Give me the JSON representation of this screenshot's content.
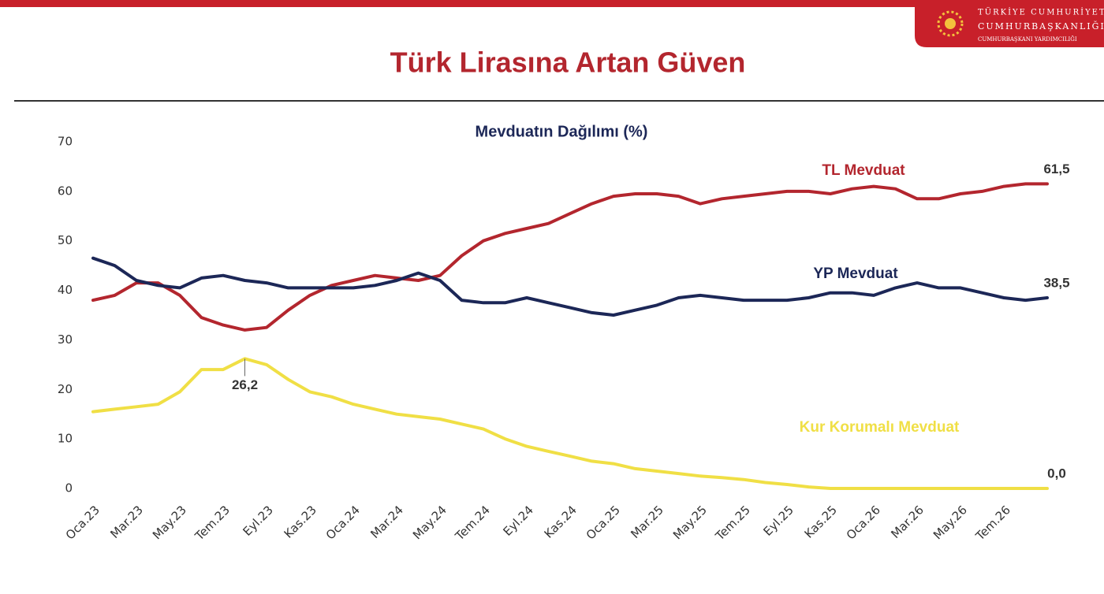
{
  "header": {
    "org_lines": [
      "TÜRKİYE CUMHURİYETİ",
      "CUMHURBAŞKANLIĞI",
      "CUMHURBAŞKANI YARDIMCILIĞI"
    ],
    "title": "Türk Lirasına Artan Güven"
  },
  "chart_data": {
    "type": "line",
    "title": "Mevduatın Dağılımı (%)",
    "categories": [
      "Oca.23",
      null,
      "Mar.23",
      null,
      "May.23",
      null,
      "Tem.23",
      null,
      "Eyl.23",
      null,
      "Kas.23",
      null,
      "Oca.24",
      null,
      "Mar.24",
      null,
      "May.24",
      null,
      "Tem.24",
      null,
      "Eyl.24",
      null,
      "Kas.24",
      null,
      "Oca.25",
      null,
      "Mar.25",
      null,
      "May.25",
      null,
      "Tem.25",
      null,
      "Eyl.25",
      null,
      "Kas.25",
      null,
      "Oca.26",
      null,
      "Mar.26",
      null,
      "May.26",
      null,
      "Tem.26",
      null,
      null
    ],
    "series": [
      {
        "name": "TL Mevduat",
        "color": "#b3262e",
        "values": [
          38,
          39,
          41.5,
          41.5,
          39,
          34.5,
          33,
          32,
          32.5,
          36,
          39,
          41,
          42,
          43,
          42.5,
          42,
          43,
          47,
          50,
          51.5,
          52.5,
          53.5,
          55.5,
          57.5,
          59,
          59.5,
          59.5,
          59,
          57.5,
          58.5,
          59,
          59.5,
          60,
          60,
          59.5,
          60.5,
          61,
          60.5,
          58.5,
          58.5,
          59.5,
          60,
          61,
          61.5,
          61.5
        ],
        "value_labels": [
          null,
          null,
          null,
          null,
          null,
          null,
          null,
          null,
          null,
          null,
          null,
          null,
          null,
          null,
          null,
          null,
          null,
          null,
          null,
          null,
          null,
          null,
          null,
          null,
          null,
          null,
          null,
          null,
          null,
          null,
          null,
          null,
          null,
          null,
          null,
          null,
          null,
          null,
          null,
          null,
          null,
          null,
          null,
          null,
          "61,5"
        ]
      },
      {
        "name": "YP Mevduat",
        "color": "#1c2757",
        "values": [
          46.5,
          45,
          42,
          41,
          40.5,
          42.5,
          43,
          42,
          41.5,
          40.5,
          40.5,
          40.5,
          40.5,
          41,
          42,
          43.5,
          42,
          38,
          37.5,
          37.5,
          38.5,
          37.5,
          36.5,
          35.5,
          35,
          36,
          37,
          38.5,
          39,
          38.5,
          38,
          38,
          38,
          38.5,
          39.5,
          39.5,
          39,
          40.5,
          41.5,
          40.5,
          40.5,
          39.5,
          38.5,
          38,
          38.5
        ],
        "value_labels": [
          null,
          null,
          null,
          null,
          null,
          null,
          null,
          null,
          null,
          null,
          null,
          null,
          null,
          null,
          null,
          null,
          null,
          null,
          null,
          null,
          null,
          null,
          null,
          null,
          null,
          null,
          null,
          null,
          null,
          null,
          null,
          null,
          null,
          null,
          null,
          null,
          null,
          null,
          null,
          null,
          null,
          null,
          null,
          null,
          "38,5"
        ]
      },
      {
        "name": "Kur Korumalı Mevduat",
        "color": "#f0df45",
        "values": [
          15.5,
          16,
          16.5,
          17,
          19.5,
          24,
          24,
          26.2,
          25,
          22,
          19.5,
          18.5,
          17,
          16,
          15,
          14.5,
          14,
          13,
          12,
          10,
          8.5,
          7.5,
          6.5,
          5.5,
          5,
          4,
          3.5,
          3,
          2.5,
          2.2,
          1.8,
          1.2,
          0.8,
          0.3,
          0,
          0,
          0,
          0,
          0,
          0,
          0,
          0,
          0,
          0,
          0
        ],
        "value_labels": [
          null,
          null,
          null,
          null,
          null,
          null,
          null,
          "26,2",
          null,
          null,
          null,
          null,
          null,
          null,
          null,
          null,
          null,
          null,
          null,
          null,
          null,
          null,
          null,
          null,
          null,
          null,
          null,
          null,
          null,
          null,
          null,
          null,
          null,
          null,
          null,
          null,
          null,
          null,
          null,
          null,
          null,
          null,
          null,
          null,
          "0,0"
        ]
      }
    ],
    "ylim": [
      0,
      70
    ],
    "yticks": [
      0,
      10,
      20,
      30,
      40,
      50,
      60,
      70
    ],
    "grid": false
  }
}
